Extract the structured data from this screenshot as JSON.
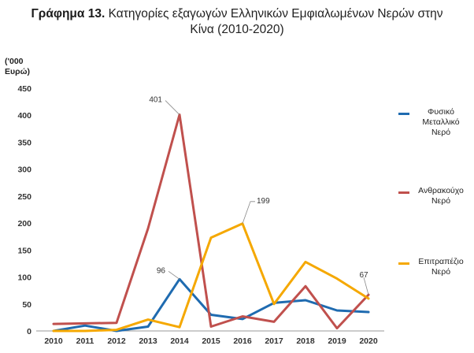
{
  "title_prefix": "Γράφημα 13.",
  "title_line1": "Κατηγορίες εξαγωγών Ελληνικών Εμφιαλωμένων Νερών στην",
  "title_line2": "Κίνα (2010-2020)",
  "unit_label_1": "('000",
  "unit_label_2": "Ευρώ)",
  "colors": {
    "natural_mineral": "#1f6bb0",
    "sparkling": "#c0504d",
    "table_water": "#f5a800",
    "grid": "#d9d9d9",
    "axis": "#999999"
  },
  "chart_data": {
    "type": "line",
    "x": [
      "2010",
      "2011",
      "2012",
      "2013",
      "2014",
      "2015",
      "2016",
      "2017",
      "2018",
      "2019",
      "2020"
    ],
    "ylim": [
      0,
      450
    ],
    "yticks": [
      0,
      50,
      100,
      150,
      200,
      250,
      300,
      350,
      400,
      450
    ],
    "grid": false,
    "legend": "right",
    "series": [
      {
        "name": "Φυσικό Μεταλλικό Νερό",
        "legend_lines": [
          "Φυσικό",
          "Μεταλλικό",
          "Νερό"
        ],
        "color": "#1f6bb0",
        "values": [
          0,
          10,
          0,
          8,
          96,
          30,
          22,
          52,
          57,
          38,
          35
        ]
      },
      {
        "name": "Ανθρακούχο Νερό",
        "legend_lines": [
          "Ανθρακούχο",
          "Νερό"
        ],
        "color": "#c0504d",
        "values": [
          13,
          14,
          15,
          190,
          401,
          8,
          27,
          17,
          83,
          5,
          67
        ]
      },
      {
        "name": "Επιτραπέζιο Νερό",
        "legend_lines": [
          "Επιτραπέζιο",
          "Νερό"
        ],
        "color": "#f5a800",
        "values": [
          0,
          0,
          2,
          21,
          7,
          173,
          199,
          50,
          128,
          97,
          60
        ]
      }
    ],
    "annotations": [
      {
        "series": 1,
        "index": 4,
        "text": "401"
      },
      {
        "series": 0,
        "index": 4,
        "text": "96"
      },
      {
        "series": 2,
        "index": 6,
        "text": "199"
      },
      {
        "series": 1,
        "index": 10,
        "text": "67"
      }
    ]
  }
}
